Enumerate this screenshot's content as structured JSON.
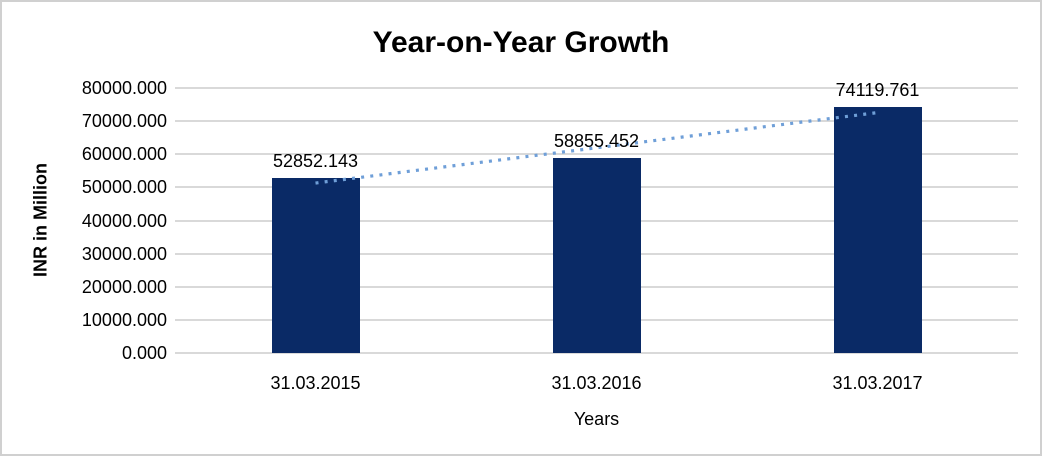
{
  "chart_data": {
    "type": "bar",
    "title": "Year-on-Year Growth",
    "xlabel": "Years",
    "ylabel": "INR in Million",
    "categories": [
      "31.03.2015",
      "31.03.2016",
      "31.03.2017"
    ],
    "values": [
      52852.143,
      58855.452,
      74119.761
    ],
    "data_labels": [
      "52852.143",
      "58855.452",
      "74119.761"
    ],
    "ylim": [
      0,
      80000
    ],
    "ytick_labels": [
      "0.000",
      "10000.000",
      "20000.000",
      "30000.000",
      "40000.000",
      "50000.000",
      "60000.000",
      "70000.000",
      "80000.000"
    ],
    "grid": true,
    "legend": "none",
    "trendline": {
      "type": "linear",
      "style": "dotted",
      "color": "#6f9fd8"
    },
    "colors": {
      "bar": "#0a2a66",
      "gridline": "#d9d9d9",
      "text": "#000000",
      "frame_border": "#d0d0d0",
      "background": "#ffffff"
    }
  }
}
